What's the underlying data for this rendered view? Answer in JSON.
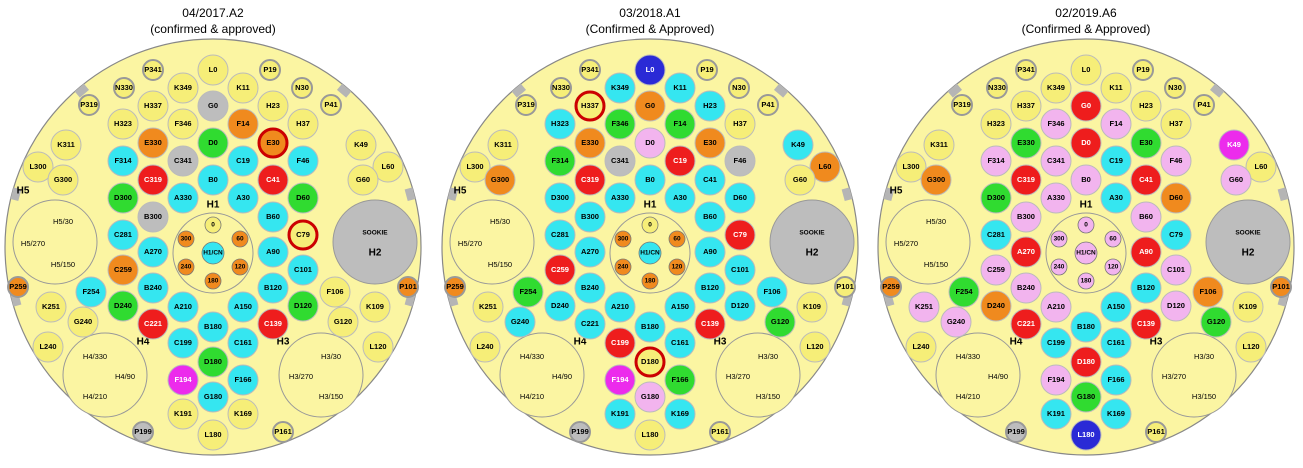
{
  "palette": {
    "y": "#f6ee78",
    "c": "#35e6f0",
    "r": "#ee1d1d",
    "o": "#f08a1e",
    "g": "#30db30",
    "m": "#ec2bec",
    "k": "#bdbdbd",
    "p": "#f2b4ee",
    "b": "#2a2ad6"
  },
  "positions": [
    "P341",
    "L0",
    "P19",
    "N330",
    "K349",
    "K11",
    "N30",
    "P319",
    "H337",
    "G0",
    "H23",
    "P41",
    "H323",
    "F346",
    "F14",
    "H37",
    "K311",
    "E330",
    "D0",
    "E30",
    "K49",
    "L300",
    "F314",
    "C341",
    "C19",
    "F46",
    "L60",
    "G300",
    "C319",
    "B0",
    "C41",
    "G60",
    "D300",
    "A330",
    "A30",
    "D60",
    "B300",
    "B60",
    "C281",
    "C79",
    "A270",
    "A90",
    "C259",
    "C101",
    "B240",
    "B120",
    "F254",
    "F106",
    "D240",
    "D120",
    "A210",
    "A150",
    "K251",
    "K109",
    "C221",
    "C139",
    "B180",
    "G240",
    "G120",
    "C199",
    "C161",
    "L240",
    "L120",
    "D180",
    "F194",
    "F166",
    "G180",
    "K191",
    "K169",
    "P199",
    "L180",
    "P161",
    "P259",
    "P101"
  ],
  "ring": [
    "0",
    "60",
    "120",
    "180",
    "240",
    "300",
    "H1/CN"
  ],
  "zones": {
    "h5": "H5",
    "h1": "H1",
    "h4": "H4",
    "h3": "H3",
    "h2": "H2",
    "h2_name": "SOOKIE"
  },
  "h5_parts": [
    "H5/30",
    "H5/270",
    "H5/150"
  ],
  "h4_parts": [
    "H4/330",
    "H4/90",
    "H4/210"
  ],
  "h3_parts": [
    "H3/30",
    "H3/270",
    "H3/150"
  ],
  "cores": [
    {
      "title": "04/2017.A2",
      "subtitle": "(confirmed & approved)",
      "fills": [
        "y",
        "y",
        "y",
        "y",
        "y",
        "y",
        "y",
        "y",
        "y",
        "k",
        "y",
        "y",
        "y",
        "y",
        "o",
        "y",
        "y",
        "o",
        "g",
        "o",
        "y",
        "y",
        "c",
        "k",
        "c",
        "c",
        "y",
        "y",
        "r",
        "c",
        "r",
        "y",
        "g",
        "c",
        "c",
        "g",
        "k",
        "c",
        "c",
        "y",
        "c",
        "c",
        "o",
        "c",
        "c",
        "c",
        "c",
        "y",
        "g",
        "g",
        "c",
        "c",
        "y",
        "y",
        "r",
        "r",
        "c",
        "y",
        "y",
        "c",
        "c",
        "y",
        "y",
        "g",
        "m",
        "c",
        "c",
        "y",
        "y",
        "k",
        "y",
        "y",
        "o",
        "o"
      ],
      "ring_fills": [
        "y",
        "o",
        "o",
        "o",
        "o",
        "o",
        "c"
      ],
      "red_rings": [
        19,
        39
      ]
    },
    {
      "title": "03/2018.A1",
      "subtitle": "(Confirmed & Approved)",
      "fills": [
        "y",
        "b",
        "y",
        "y",
        "c",
        "c",
        "y",
        "y",
        "y",
        "o",
        "c",
        "y",
        "c",
        "g",
        "g",
        "y",
        "y",
        "o",
        "p",
        "o",
        "c",
        "y",
        "g",
        "k",
        "r",
        "k",
        "o",
        "o",
        "r",
        "c",
        "c",
        "y",
        "c",
        "c",
        "c",
        "c",
        "c",
        "c",
        "c",
        "r",
        "c",
        "c",
        "r",
        "c",
        "c",
        "c",
        "g",
        "c",
        "c",
        "c",
        "c",
        "c",
        "y",
        "y",
        "c",
        "r",
        "c",
        "c",
        "g",
        "r",
        "c",
        "y",
        "y",
        "y",
        "m",
        "g",
        "p",
        "c",
        "c",
        "k",
        "y",
        "y",
        "o",
        "y"
      ],
      "ring_fills": [
        "y",
        "o",
        "o",
        "o",
        "o",
        "o",
        "c"
      ],
      "red_rings": [
        8,
        63
      ]
    },
    {
      "title": "02/2019.A6",
      "subtitle": "(Confirmed & Approved)",
      "fills": [
        "y",
        "y",
        "y",
        "y",
        "y",
        "y",
        "y",
        "y",
        "y",
        "r",
        "y",
        "y",
        "y",
        "p",
        "p",
        "y",
        "y",
        "g",
        "r",
        "g",
        "m",
        "y",
        "p",
        "p",
        "c",
        "p",
        "y",
        "o",
        "r",
        "p",
        "r",
        "p",
        "g",
        "p",
        "c",
        "o",
        "p",
        "p",
        "c",
        "c",
        "r",
        "r",
        "p",
        "p",
        "p",
        "c",
        "g",
        "o",
        "o",
        "p",
        "p",
        "c",
        "p",
        "y",
        "r",
        "r",
        "c",
        "p",
        "g",
        "c",
        "c",
        "y",
        "y",
        "r",
        "p",
        "c",
        "g",
        "c",
        "c",
        "k",
        "b",
        "y",
        "o",
        "o"
      ],
      "ring_fills": [
        "p",
        "p",
        "p",
        "p",
        "p",
        "p",
        "p"
      ],
      "red_rings": []
    }
  ]
}
